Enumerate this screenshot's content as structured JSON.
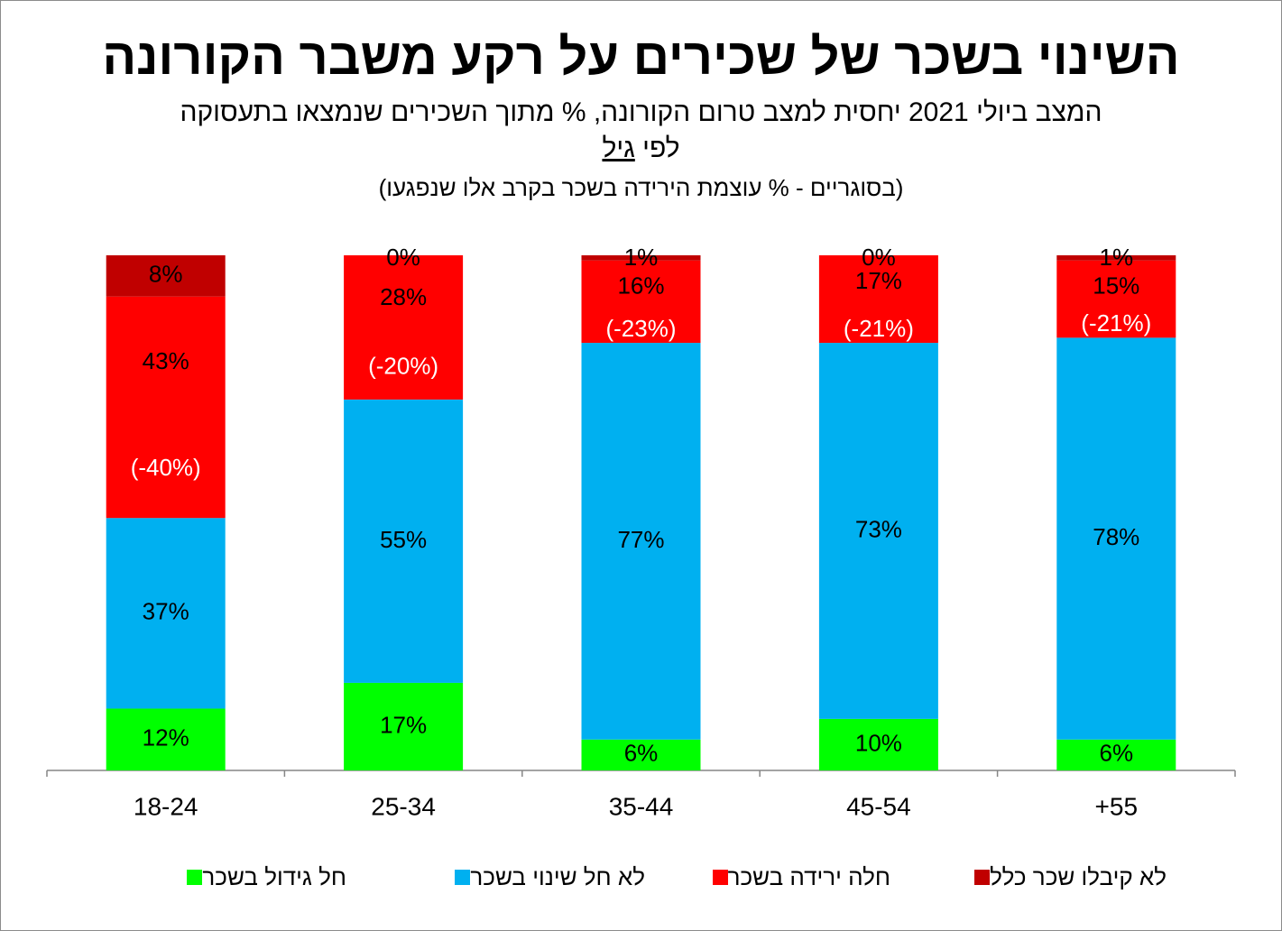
{
  "title": "השינוי בשכר של שכירים על רקע משבר הקורונה",
  "subtitle": "המצב ביולי 2021 יחסית למצב טרום הקורונה, % מתוך השכירים שנמצאו בתעסוקה",
  "subtitle2_prefix": "לפי",
  "subtitle2_underlined": "גיל",
  "note": "(בסוגריים - % עוצמת הירידה בשכר בקרב אלו שנפגעו)",
  "chart_data": {
    "type": "bar",
    "stacked": true,
    "categories": [
      "18-24",
      "25-34",
      "35-44",
      "45-54",
      "+55"
    ],
    "ylim": [
      0,
      100
    ],
    "series": [
      {
        "name": "חל גידול בשכר",
        "color": "#00ff00",
        "values": [
          12,
          17,
          6,
          10,
          6
        ],
        "labels": [
          "12%",
          "17%",
          "6%",
          "10%",
          "6%"
        ]
      },
      {
        "name": "לא חל שינוי בשכר",
        "color": "#00b0f0",
        "values": [
          37,
          55,
          77,
          73,
          78
        ],
        "labels": [
          "37%",
          "55%",
          "77%",
          "73%",
          "78%"
        ]
      },
      {
        "name": "חלה ירידה בשכר",
        "color": "#ff0000",
        "values": [
          43,
          28,
          16,
          17,
          15
        ],
        "labels": [
          "43%",
          "28%",
          "16%",
          "17%",
          "15%"
        ]
      },
      {
        "name": "לא קיבלו שכר כלל",
        "color": "#c00000",
        "values": [
          8,
          0,
          1,
          0,
          1
        ],
        "labels": [
          "8%",
          "0%",
          "1%",
          "0%",
          "1%"
        ]
      }
    ],
    "decline_intensity": [
      "(-40%)",
      "(-20%)",
      "(-23%)",
      "(-21%)",
      "(-21%)"
    ],
    "legend_position": "bottom",
    "grid": false
  }
}
